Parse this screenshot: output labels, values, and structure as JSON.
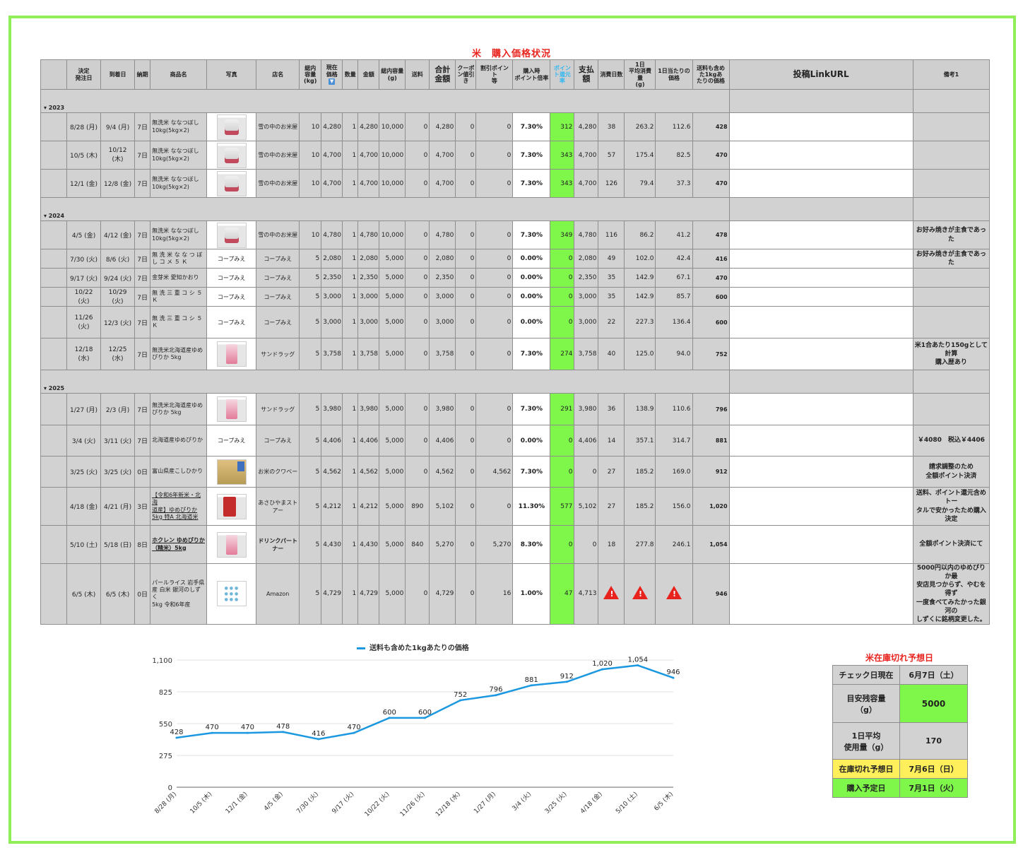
{
  "title": "米　購入価格状況",
  "headers": {
    "order_date": "決定\n発注日",
    "arrival": "到着日",
    "lead": "納期",
    "product": "商品名",
    "photo": "写真",
    "store": "店名",
    "capacity": "総内\n容量\n(kg)",
    "price": "現在\n価格",
    "qty": "数量",
    "amount": "金額",
    "total_g": "総内容量\n(g)",
    "shipping": "送料",
    "sum": "合計\n金額",
    "coupon": "クーポ\nン値引\nき",
    "discount_point": "割引ポイント\n等",
    "rate": "購入時\nポイント倍率",
    "point_return": "ポイン\nト還元\n率",
    "paid": "支払\n額",
    "days": "消費日数",
    "daily_avg": "1日\n平均消費量\n(g)",
    "per_day": "1日当たりの\n価格",
    "per_kg": "送料も含め\nた1kgあ\nたりの価格",
    "link": "投稿LinkURL",
    "notes": "備考1"
  },
  "years": [
    {
      "year": "▾ 2023",
      "rows": [
        {
          "order": "8/28 (月)",
          "arrival": "9/4 (月)",
          "lead": "7日",
          "product": "無洗米 ななつぼし\n10kg(5kg×2)",
          "photo": "rice",
          "store": "雪の中のお米屋",
          "cap": "10",
          "price": "4,280",
          "qty": "1",
          "amount": "4,280",
          "g": "10,000",
          "ship": "0",
          "sum": "4,280",
          "coupon": "0",
          "dp": "0",
          "rate": "7.30%",
          "pr": "312",
          "paid": "4,280",
          "days": "38",
          "avg": "263.2",
          "pday": "112.6",
          "pkg": "428",
          "note": ""
        },
        {
          "order": "10/5 (木)",
          "arrival": "10/12 (木)",
          "lead": "7日",
          "product": "無洗米 ななつぼし\n10kg(5kg×2)",
          "photo": "rice",
          "store": "雪の中のお米屋",
          "cap": "10",
          "price": "4,700",
          "qty": "1",
          "amount": "4,700",
          "g": "10,000",
          "ship": "0",
          "sum": "4,700",
          "coupon": "0",
          "dp": "0",
          "rate": "7.30%",
          "pr": "343",
          "paid": "4,700",
          "days": "57",
          "avg": "175.4",
          "pday": "82.5",
          "pkg": "470",
          "note": ""
        },
        {
          "order": "12/1 (金)",
          "arrival": "12/8 (金)",
          "lead": "7日",
          "product": "無洗米 ななつぼし\n10kg(5kg×2)",
          "photo": "rice",
          "store": "雪の中のお米屋",
          "cap": "10",
          "price": "4,700",
          "qty": "1",
          "amount": "4,700",
          "g": "10,000",
          "ship": "0",
          "sum": "4,700",
          "coupon": "0",
          "dp": "0",
          "rate": "7.30%",
          "pr": "343",
          "paid": "4,700",
          "days": "126",
          "avg": "79.4",
          "pday": "37.3",
          "pkg": "470",
          "note": ""
        }
      ]
    },
    {
      "year": "▾ 2024",
      "rows": [
        {
          "order": "4/5 (金)",
          "arrival": "4/12 (金)",
          "lead": "7日",
          "product": "無洗米 ななつぼし\n10kg(5kg×2)",
          "photo": "rice",
          "store": "雪の中のお米屋",
          "cap": "10",
          "price": "4,780",
          "qty": "1",
          "amount": "4,780",
          "g": "10,000",
          "ship": "0",
          "sum": "4,780",
          "coupon": "0",
          "dp": "0",
          "rate": "7.30%",
          "pr": "349",
          "paid": "4,780",
          "days": "116",
          "avg": "86.2",
          "pday": "41.2",
          "pkg": "478",
          "note": "お好み焼きが主食であった"
        },
        {
          "order": "7/30 (火)",
          "arrival": "8/6 (火)",
          "lead": "7日",
          "product": "無 洗 米 な な つ ぼ\nし コ メ ５ Ｋ",
          "photo": "text",
          "photo_text": "コープみえ",
          "store": "コープみえ",
          "cap": "5",
          "price": "2,080",
          "qty": "1",
          "amount": "2,080",
          "g": "5,000",
          "ship": "0",
          "sum": "2,080",
          "coupon": "0",
          "dp": "0",
          "rate": "0.00%",
          "pr": "0",
          "paid": "2,080",
          "days": "49",
          "avg": "102.0",
          "pday": "42.4",
          "pkg": "416",
          "note": "お好み焼きが主食であった"
        },
        {
          "order": "9/17 (火)",
          "arrival": "9/24 (火)",
          "lead": "7日",
          "product": "金芽米 愛知かおり",
          "photo": "text",
          "photo_text": "コープみえ",
          "store": "コープみえ",
          "cap": "5",
          "price": "2,350",
          "qty": "1",
          "amount": "2,350",
          "g": "5,000",
          "ship": "0",
          "sum": "2,350",
          "coupon": "0",
          "dp": "0",
          "rate": "0.00%",
          "pr": "0",
          "paid": "2,350",
          "days": "35",
          "avg": "142.9",
          "pday": "67.1",
          "pkg": "470",
          "note": ""
        },
        {
          "order": "10/22 (火)",
          "arrival": "10/29 (火)",
          "lead": "7日",
          "product": "無 洗 三 重 コ シ ５ Ｋ",
          "photo": "text",
          "photo_text": "コープみえ",
          "store": "コープみえ",
          "cap": "5",
          "price": "3,000",
          "qty": "1",
          "amount": "3,000",
          "g": "5,000",
          "ship": "0",
          "sum": "3,000",
          "coupon": "0",
          "dp": "0",
          "rate": "0.00%",
          "pr": "0",
          "paid": "3,000",
          "days": "35",
          "avg": "142.9",
          "pday": "85.7",
          "pkg": "600",
          "note": ""
        },
        {
          "order": "11/26 (火)",
          "arrival": "12/3 (火)",
          "lead": "7日",
          "product": "無 洗 三 重 コ シ ５ Ｋ",
          "photo": "text",
          "photo_text": "コープみえ",
          "store": "コープみえ",
          "cap": "5",
          "price": "3,000",
          "qty": "1",
          "amount": "3,000",
          "g": "5,000",
          "ship": "0",
          "sum": "3,000",
          "coupon": "0",
          "dp": "0",
          "rate": "0.00%",
          "pr": "0",
          "paid": "3,000",
          "days": "22",
          "avg": "227.3",
          "pday": "136.4",
          "pkg": "600",
          "note": ""
        },
        {
          "order": "12/18 (水)",
          "arrival": "12/25 (水)",
          "lead": "7日",
          "product": "無洗米北海道産ゆめ\nぴりか 5kg",
          "photo": "pink",
          "store": "サンドラッグ",
          "cap": "5",
          "price": "3,758",
          "qty": "1",
          "amount": "3,758",
          "g": "5,000",
          "ship": "0",
          "sum": "3,758",
          "coupon": "0",
          "dp": "0",
          "rate": "7.30%",
          "pr": "274",
          "paid": "3,758",
          "days": "40",
          "avg": "125.0",
          "pday": "94.0",
          "pkg": "752",
          "note": "米1合あたり150gとして計算\n購入歴あり"
        }
      ]
    },
    {
      "year": "▾ 2025",
      "rows": [
        {
          "order": "1/27 (月)",
          "arrival": "2/3 (月)",
          "lead": "7日",
          "product": "無洗米北海道産ゆめ\nぴりか 5kg",
          "photo": "pink",
          "store": "サンドラッグ",
          "cap": "5",
          "price": "3,980",
          "qty": "1",
          "amount": "3,980",
          "g": "5,000",
          "ship": "0",
          "sum": "3,980",
          "coupon": "0",
          "dp": "0",
          "rate": "7.30%",
          "pr": "291",
          "paid": "3,980",
          "days": "36",
          "avg": "138.9",
          "pday": "110.6",
          "pkg": "796",
          "note": ""
        },
        {
          "order": "3/4 (火)",
          "arrival": "3/11 (火)",
          "lead": "7日",
          "product": "北海道産ゆめぴりか",
          "photo": "text",
          "photo_text": "コープみえ",
          "store": "コープみえ",
          "cap": "5",
          "price": "4,406",
          "qty": "1",
          "amount": "4,406",
          "g": "5,000",
          "ship": "0",
          "sum": "4,406",
          "coupon": "0",
          "dp": "0",
          "rate": "0.00%",
          "pr": "0",
          "paid": "4,406",
          "days": "14",
          "avg": "357.1",
          "pday": "314.7",
          "pkg": "881",
          "note": "￥4080　税込￥4406"
        },
        {
          "order": "3/25 (火)",
          "arrival": "3/25 (火)",
          "lead": "0日",
          "product": "富山県産こしひかり",
          "photo": "field",
          "store": "お米のクワベー",
          "cap": "5",
          "price": "4,562",
          "qty": "1",
          "amount": "4,562",
          "g": "5,000",
          "ship": "0",
          "sum": "4,562",
          "coupon": "0",
          "dp": "4,562",
          "rate": "7.30%",
          "pr": "0",
          "paid": "0",
          "days": "27",
          "avg": "185.2",
          "pday": "169.0",
          "pkg": "912",
          "note": "請求調整のため\n全額ポイント決済"
        },
        {
          "order": "4/18 (金)",
          "arrival": "4/21 (月)",
          "lead": "3日",
          "product": "【令和6年新米・北海\n道産】ゆめぴりか\n5kg 特A 北海道米",
          "photo": "red",
          "store": "あさひやまスト\nアー",
          "cap": "5",
          "price": "4,212",
          "qty": "1",
          "amount": "4,212",
          "g": "5,000",
          "ship": "890",
          "sum": "5,102",
          "coupon": "0",
          "dp": "0",
          "rate": "11.30%",
          "pr": "577",
          "paid": "5,102",
          "days": "27",
          "avg": "185.2",
          "pday": "156.0",
          "pkg": "1,020",
          "note": "送料、ポイント還元含めトー\nタルで安かったため購入決定"
        },
        {
          "order": "5/10 (土)",
          "arrival": "5/18 (日)",
          "lead": "8日",
          "product": "ホクレン ゆめぴりか\n（精米）5kg",
          "photo": "pink",
          "store": "ドリンクパート\nナー",
          "cap": "5",
          "price": "4,430",
          "qty": "1",
          "amount": "4,430",
          "g": "5,000",
          "ship": "840",
          "sum": "5,270",
          "coupon": "0",
          "dp": "5,270",
          "rate": "8.30%",
          "pr": "0",
          "paid": "0",
          "days": "18",
          "avg": "277.8",
          "pday": "246.1",
          "pkg": "1,054",
          "note": "全額ポイント決済にて"
        },
        {
          "order": "6/5 (木)",
          "arrival": "6/5 (木)",
          "lead": "0日",
          "product": "パールライス 岩手県\n産 白米 銀河のしずく\n5kg 令和6年産",
          "photo": "dots",
          "store": "Amazon",
          "cap": "5",
          "price": "4,729",
          "qty": "1",
          "amount": "4,729",
          "g": "5,000",
          "ship": "0",
          "sum": "4,729",
          "coupon": "0",
          "dp": "16",
          "rate": "1.00%",
          "pr": "47",
          "paid": "4,713",
          "days": "warning",
          "avg": "warning",
          "pday": "warning",
          "pkg": "946",
          "note": "5000円以内のゆめぴりか最\n安店見つからず、やむを得ず\n一度食べてみたかった銀河の\nしずくに銘柄変更した。"
        }
      ]
    }
  ],
  "chart_data": {
    "type": "line",
    "title": "送料も含めた1kgあたりの価格",
    "categories": [
      "8/28 (月)",
      "10/5 (木)",
      "12/1 (金)",
      "4/5 (金)",
      "7/30 (火)",
      "9/17 (火)",
      "10/22 (火)",
      "11/26 (火)",
      "12/18 (水)",
      "1/27 (月)",
      "3/4 (火)",
      "3/25 (火)",
      "4/18 (金)",
      "5/10 (土)",
      "6/5 (木)"
    ],
    "series": [
      {
        "name": "送料も含めた1kgあたりの価格",
        "values": [
          428,
          470,
          470,
          478,
          416,
          470,
          600,
          600,
          752,
          796,
          881,
          912,
          1020,
          1054,
          946
        ]
      }
    ],
    "value_labels": [
      "428",
      "470",
      "470",
      "478",
      "416",
      "470",
      "600",
      "600",
      "752",
      "796",
      "881",
      "912",
      "1,020",
      "1,054",
      "946"
    ],
    "yticks": [
      "0",
      "275",
      "550",
      "825",
      "1,100"
    ],
    "ylim": [
      0,
      1100
    ],
    "grid": true,
    "legend": "top",
    "color": "#1b98e0"
  },
  "stock": {
    "title": "米在庫切れ予想日",
    "rows": [
      {
        "label": "チェック日現在",
        "value": "6月7日（土）"
      },
      {
        "label": "目安残容量\n（g）",
        "value": "5000"
      },
      {
        "label": "1日平均\n使用量（g）",
        "value": "170"
      },
      {
        "label": "在庫切れ予想日",
        "value": "7月6日（日）"
      },
      {
        "label": "購入予定日",
        "value": "7月1日（火）"
      }
    ]
  }
}
